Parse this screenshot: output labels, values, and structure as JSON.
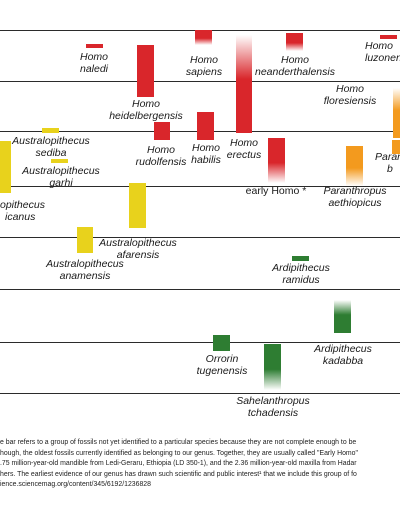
{
  "species": [
    {
      "id": "homo-naledi",
      "line1": "Homo",
      "line2": "naledi",
      "color": "#d9262b",
      "fade": "none"
    },
    {
      "id": "homo-sapiens",
      "line1": "Homo",
      "line2": "sapiens",
      "color": "#d9262b",
      "fade": "down"
    },
    {
      "id": "homo-neanderthalensis",
      "line1": "Homo",
      "line2": "neanderthalensis",
      "color": "#d9262b",
      "fade": "down"
    },
    {
      "id": "homo-luzonensis",
      "line1": "Homo",
      "line2": "luzonen",
      "color": "#d9262b",
      "fade": "none"
    },
    {
      "id": "homo-heidelbergensis",
      "line1": "Homo",
      "line2": "heidelbergensis",
      "color": "#d9262b",
      "fade": "none"
    },
    {
      "id": "homo-floresiensis",
      "line1": "Homo",
      "line2": "floresiensis",
      "color": "#f39a1e",
      "fade": "up"
    },
    {
      "id": "australopithecus-sediba",
      "line1": "Australopithecus",
      "line2": "sediba",
      "color": "#e8d21c",
      "fade": "none"
    },
    {
      "id": "australopithecus-garhi",
      "line1": "Australopithecus",
      "line2": "garhi",
      "color": "#e8d21c",
      "fade": "none"
    },
    {
      "id": "australopithecus-africanus",
      "line1": "opithecus",
      "line2": "icanus",
      "color": "#e8d21c",
      "fade": "none"
    },
    {
      "id": "homo-rudolfensis",
      "line1": "Homo",
      "line2": "rudolfensis",
      "color": "#d9262b",
      "fade": "none"
    },
    {
      "id": "homo-habilis",
      "line1": "Homo",
      "line2": "habilis",
      "color": "#d9262b",
      "fade": "none"
    },
    {
      "id": "homo-erectus",
      "line1": "Homo",
      "line2": "erectus",
      "color": "#d9262b",
      "fade": "up"
    },
    {
      "id": "early-homo",
      "line1": "early Homo *",
      "line2": "",
      "color": "#d9262b",
      "fade": "down"
    },
    {
      "id": "paranthropus-boisei",
      "line1": "Paran",
      "line2": "b",
      "color": "#f39a1e",
      "fade": "none"
    },
    {
      "id": "paranthropus-aethiopicus",
      "line1": "Paranthropus",
      "line2": "aethiopicus",
      "color": "#f39a1e",
      "fade": "down"
    },
    {
      "id": "australopithecus-afarensis",
      "line1": "Australopithecus",
      "line2": "afarensis",
      "color": "#e8d21c",
      "fade": "none"
    },
    {
      "id": "australopithecus-anamensis",
      "line1": "Australopithecus",
      "line2": "anamensis",
      "color": "#e8d21c",
      "fade": "none"
    },
    {
      "id": "ardipithecus-ramidus",
      "line1": "Ardipithecus",
      "line2": "ramidus",
      "color": "#2e7d32",
      "fade": "none"
    },
    {
      "id": "ardipithecus-kadabba",
      "line1": "Ardipithecus",
      "line2": "kadabba",
      "color": "#2e7d32",
      "fade": "up"
    },
    {
      "id": "orrorin-tugenensis",
      "line1": "Orrorin",
      "line2": "tugenensis",
      "color": "#2e7d32",
      "fade": "none"
    },
    {
      "id": "sahelanthropus-tchadensis",
      "line1": "Sahelanthropus",
      "line2": "tchadensis",
      "color": "#2e7d32",
      "fade": "down"
    }
  ],
  "footnote": [
    "e bar refers to a group of fossils not yet identified to a particular species because they are not complete enough to be",
    "hough, the oldest fossils currently identified as belonging to our genus. Together, they are usually called \"Early Homo\"",
    ".75 million-year-old mandible from Ledi-Geraru, Ethiopia (LD 350-1), and the 2.36 million-year-old maxilla from Hadar",
    "hers. The earliest evidence of our genus has drawn such scientific and public interest¹ that we include this group of fo",
    "ience.sciencemag.org/content/345/6192/1236828"
  ]
}
